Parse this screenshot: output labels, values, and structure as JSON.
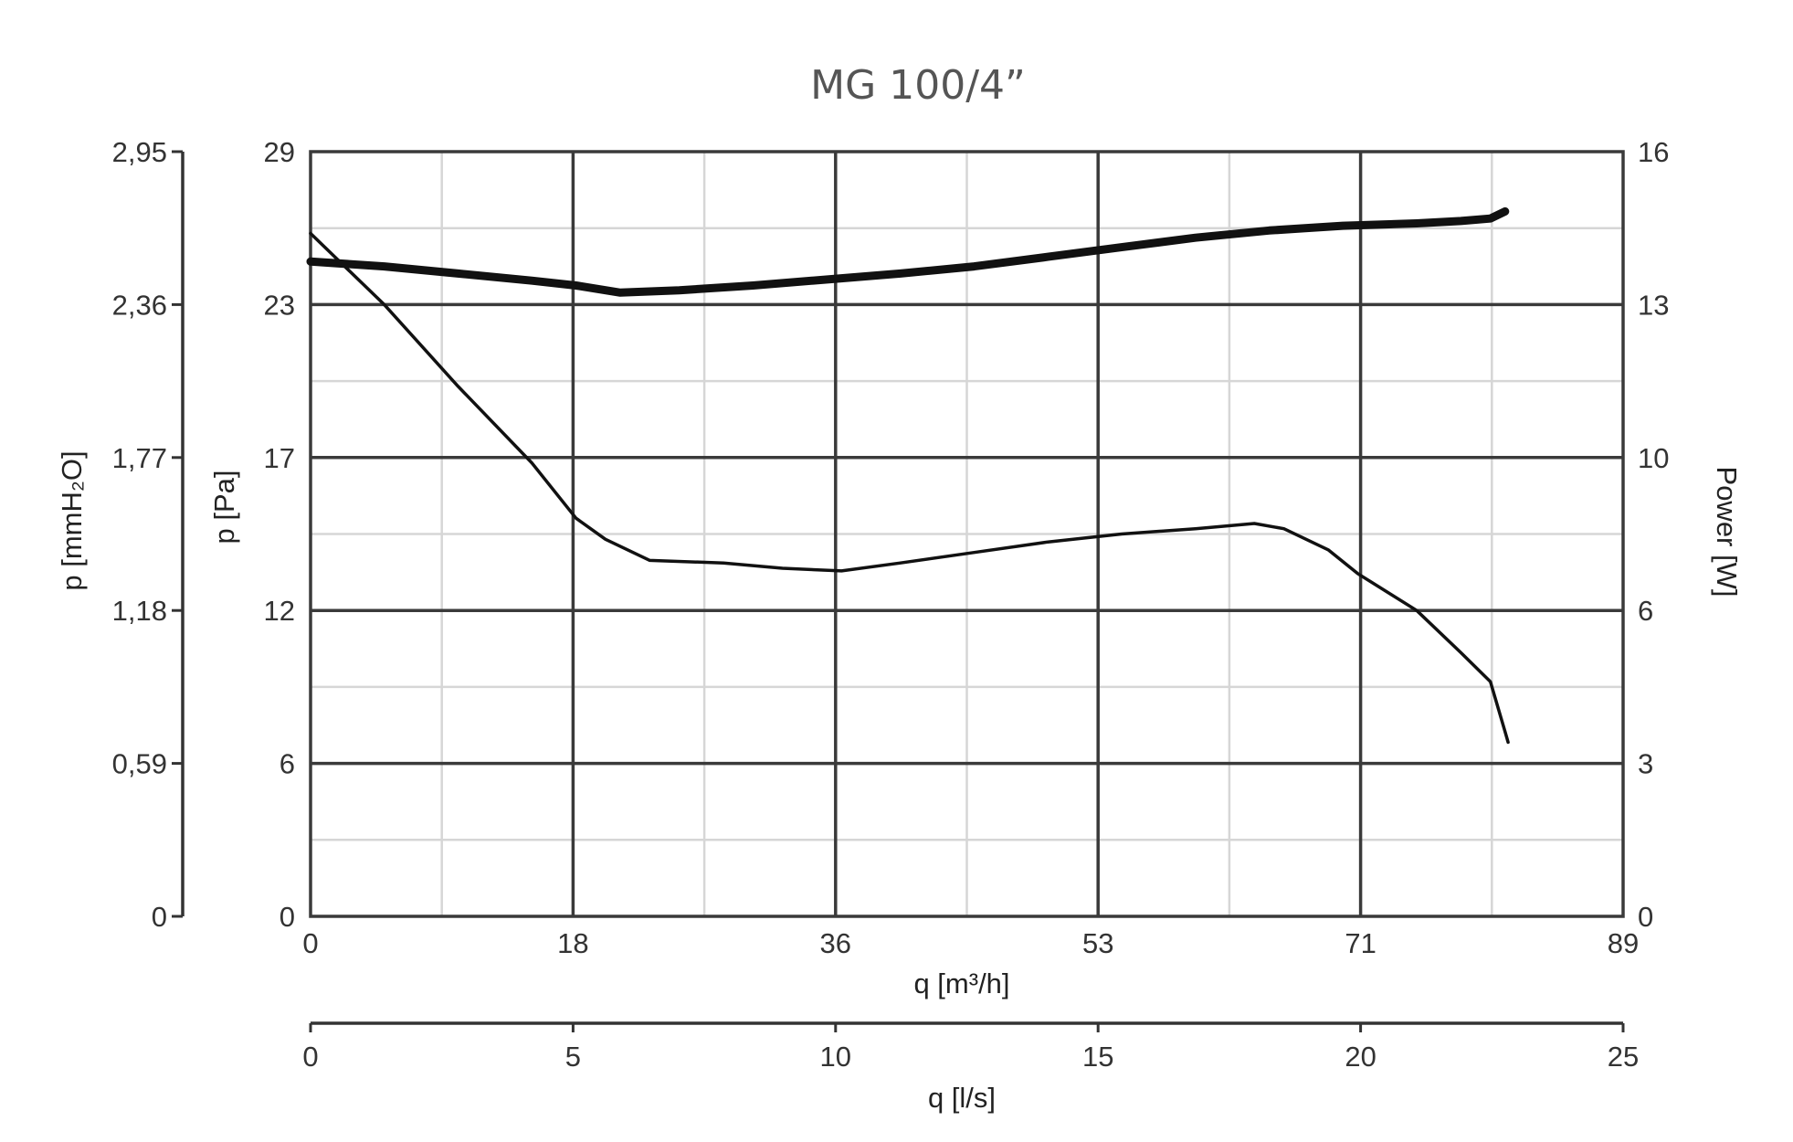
{
  "chart_data": {
    "type": "line",
    "title": "MG 100/4”",
    "x": {
      "label": "q [m³/h]",
      "lim": [
        0,
        89
      ],
      "ticks": [
        "0",
        "18",
        "36",
        "53",
        "71",
        "89"
      ]
    },
    "x2": {
      "label": "q [l/s]",
      "lim": [
        0,
        25
      ],
      "ticks": [
        "0",
        "5",
        "10",
        "15",
        "20",
        "25"
      ]
    },
    "y_pa": {
      "label": "p [Pa]",
      "lim": [
        0,
        29
      ],
      "ticks": [
        "0",
        "6",
        "12",
        "17",
        "23",
        "29"
      ]
    },
    "y_mmh2o": {
      "label": "p  [mmH₂O]",
      "lim": [
        0,
        2.95
      ],
      "ticks": [
        "0",
        "0,59",
        "1,18",
        "1,77",
        "2,36",
        "2,95"
      ]
    },
    "y_power": {
      "label": "Power [W]",
      "lim": [
        0,
        16
      ],
      "ticks": [
        "0",
        "3",
        "6",
        "10",
        "13",
        "16"
      ]
    },
    "grid": true,
    "series": [
      {
        "axis": "pressure",
        "color": "#111111",
        "points": [
          [
            0,
            25.9
          ],
          [
            5,
            23.2
          ],
          [
            10,
            20.1
          ],
          [
            15,
            17.2
          ],
          [
            18,
            15.1
          ],
          [
            20,
            14.3
          ],
          [
            23,
            13.5
          ],
          [
            28,
            13.4
          ],
          [
            32,
            13.2
          ],
          [
            36,
            13.1
          ],
          [
            40,
            13.4
          ],
          [
            45,
            13.8
          ],
          [
            50,
            14.2
          ],
          [
            55,
            14.5
          ],
          [
            60,
            14.7
          ],
          [
            64,
            14.9
          ],
          [
            66,
            14.7
          ],
          [
            69,
            13.9
          ],
          [
            71,
            13.0
          ],
          [
            75,
            11.6
          ],
          [
            78,
            10.0
          ],
          [
            80,
            8.9
          ],
          [
            81,
            7.0
          ],
          [
            81.2,
            6.6
          ]
        ]
      },
      {
        "axis": "power",
        "color": "#111111",
        "points": [
          [
            0,
            13.7
          ],
          [
            5,
            13.6
          ],
          [
            10,
            13.45
          ],
          [
            15,
            13.3
          ],
          [
            18,
            13.2
          ],
          [
            21,
            13.05
          ],
          [
            25,
            13.1
          ],
          [
            30,
            13.2
          ],
          [
            36,
            13.35
          ],
          [
            40,
            13.45
          ],
          [
            45,
            13.6
          ],
          [
            50,
            13.8
          ],
          [
            55,
            14.0
          ],
          [
            60,
            14.2
          ],
          [
            65,
            14.35
          ],
          [
            70,
            14.45
          ],
          [
            75,
            14.5
          ],
          [
            78,
            14.55
          ],
          [
            80,
            14.6
          ],
          [
            81,
            14.75
          ]
        ]
      }
    ]
  }
}
